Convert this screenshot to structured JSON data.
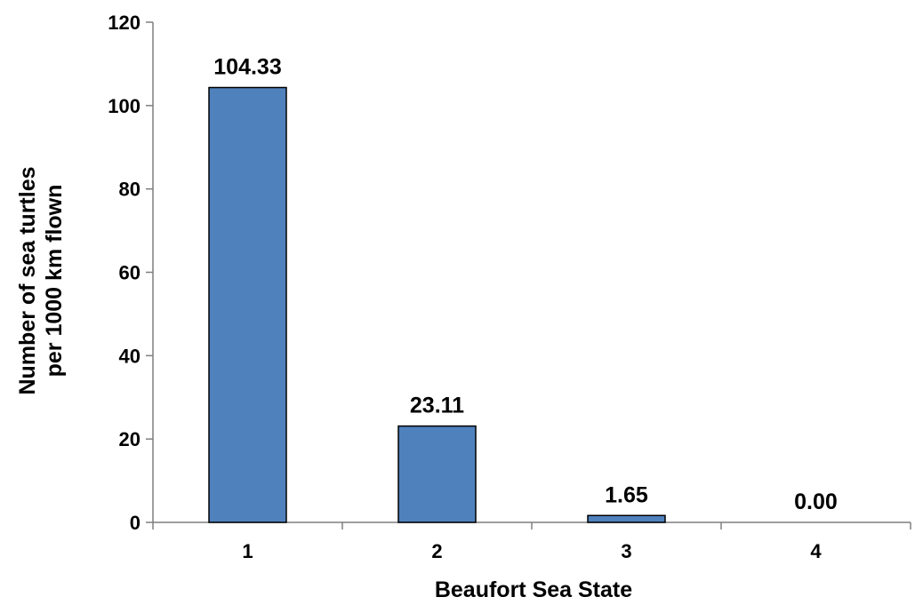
{
  "chart_data": {
    "type": "bar",
    "categories": [
      "1",
      "2",
      "3",
      "4"
    ],
    "values": [
      104.33,
      23.11,
      1.65,
      0.0
    ],
    "data_labels": [
      "104.33",
      "23.11",
      "1.65",
      "0.00"
    ],
    "title": "",
    "xlabel": "Beaufort Sea State",
    "ylabel_lines": [
      "Number of sea turtles",
      "per 1000 km flown"
    ],
    "ylim": [
      0,
      120
    ],
    "yticks": [
      "0",
      "20",
      "40",
      "60",
      "80",
      "100",
      "120"
    ],
    "grid": false,
    "legend": "none",
    "bar_color": "#4F81BD",
    "bar_edge_color": "#000000"
  }
}
